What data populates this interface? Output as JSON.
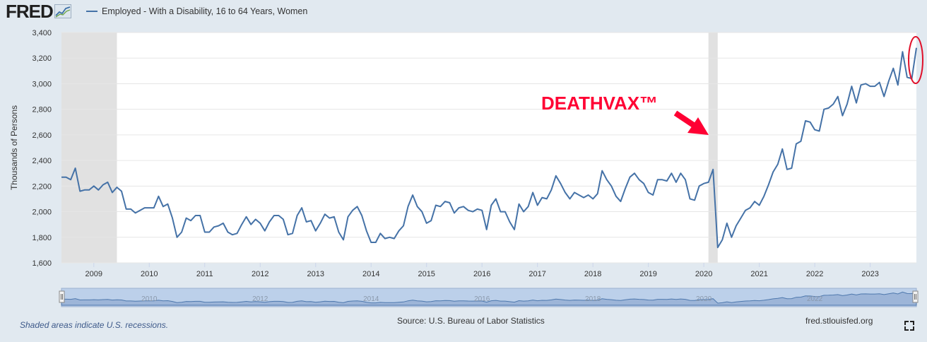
{
  "logo": {
    "text": "FRED",
    "icon": "chart-line-icon"
  },
  "legend": {
    "series_label": "Employed - With a Disability, 16 to 64 Years, Women"
  },
  "annotation": {
    "text": "DEATHVAX™",
    "color": "#ff0033"
  },
  "footer": {
    "recession_note": "Shaded areas indicate U.S. recessions.",
    "source": "Source: U.S. Bureau of Labor Statistics",
    "site": "fred.stlouisfed.org"
  },
  "colors": {
    "line": "#4572a7",
    "recession": "#e1e1e1",
    "background": "#e1e9f0",
    "navigator_fill": "#bcd0ea"
  },
  "chart_data": {
    "type": "line",
    "title": "",
    "xlabel": "",
    "ylabel": "Thousands of Persons",
    "ylim": [
      1600,
      3400
    ],
    "yticks": [
      "1,600",
      "1,800",
      "2,000",
      "2,200",
      "2,400",
      "2,600",
      "2,800",
      "3,000",
      "3,200",
      "3,400"
    ],
    "yticks_values": [
      1600,
      1800,
      2000,
      2200,
      2400,
      2600,
      2800,
      3000,
      3200,
      3400
    ],
    "xlim": [
      "2008-06",
      "2023-11"
    ],
    "xticks": [
      "2009",
      "2010",
      "2011",
      "2012",
      "2013",
      "2014",
      "2015",
      "2016",
      "2017",
      "2018",
      "2019",
      "2020",
      "2021",
      "2022",
      "2023"
    ],
    "navigator_ticks": [
      "2010",
      "2012",
      "2014",
      "2016",
      "2018",
      "2020",
      "2022"
    ],
    "grid": true,
    "recessions": [
      [
        "2008-06",
        "2009-06"
      ],
      [
        "2020-02",
        "2020-04"
      ]
    ],
    "series": [
      {
        "name": "Employed - With a Disability, 16 to 64 Years, Women",
        "start": "2008-06",
        "frequency": "monthly",
        "values": [
          2270,
          2270,
          2250,
          2340,
          2160,
          2170,
          2170,
          2200,
          2170,
          2210,
          2230,
          2150,
          2190,
          2160,
          2020,
          2020,
          1990,
          2010,
          2030,
          2030,
          2030,
          2120,
          2040,
          2060,
          1950,
          1800,
          1840,
          1950,
          1930,
          1970,
          1970,
          1840,
          1840,
          1880,
          1890,
          1910,
          1840,
          1820,
          1830,
          1900,
          1960,
          1900,
          1940,
          1910,
          1850,
          1920,
          1970,
          1970,
          1940,
          1820,
          1830,
          1970,
          2030,
          1920,
          1930,
          1850,
          1910,
          1980,
          1950,
          1960,
          1840,
          1780,
          1960,
          2010,
          2040,
          1970,
          1850,
          1760,
          1760,
          1830,
          1790,
          1800,
          1790,
          1850,
          1890,
          2040,
          2130,
          2040,
          2000,
          1910,
          1930,
          2050,
          2040,
          2080,
          2070,
          1990,
          2030,
          2040,
          2010,
          2000,
          2020,
          2010,
          1860,
          2050,
          2100,
          2000,
          2000,
          1920,
          1860,
          2060,
          2000,
          2040,
          2150,
          2050,
          2110,
          2100,
          2170,
          2280,
          2220,
          2150,
          2100,
          2150,
          2130,
          2110,
          2130,
          2100,
          2140,
          2320,
          2250,
          2200,
          2120,
          2080,
          2180,
          2270,
          2300,
          2250,
          2220,
          2150,
          2130,
          2250,
          2250,
          2240,
          2300,
          2230,
          2300,
          2250,
          2100,
          2090,
          2200,
          2220,
          2230,
          2330,
          1720,
          1780,
          1910,
          1800,
          1890,
          1950,
          2010,
          2030,
          2080,
          2050,
          2120,
          2210,
          2310,
          2370,
          2490,
          2330,
          2340,
          2530,
          2550,
          2710,
          2700,
          2640,
          2630,
          2800,
          2810,
          2840,
          2900,
          2750,
          2840,
          2980,
          2850,
          2990,
          3000,
          2980,
          2980,
          3010,
          2900,
          3020,
          3120,
          2990,
          3250,
          3050,
          3040,
          3280
        ]
      }
    ]
  }
}
